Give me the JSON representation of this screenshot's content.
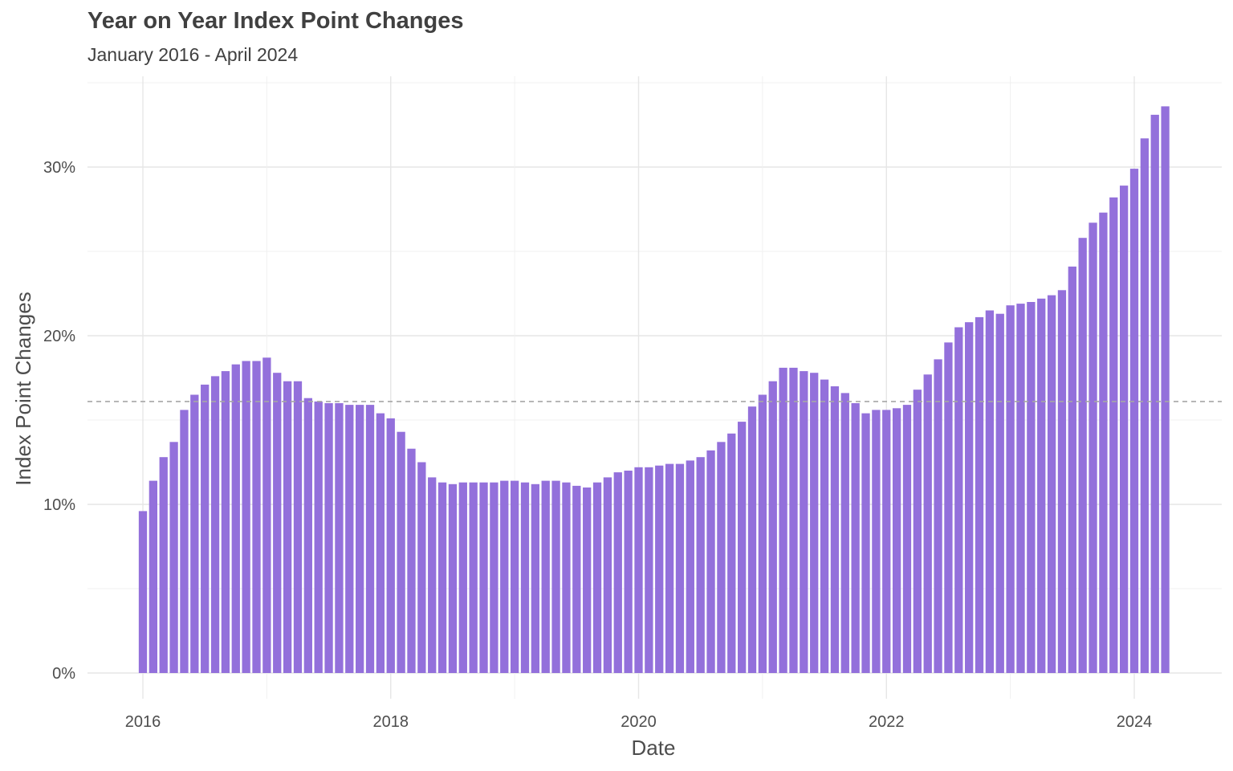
{
  "chart_data": {
    "type": "bar",
    "title": "Year on Year Index Point Changes",
    "subtitle": "January 2016 - April 2024",
    "xlabel": "Date",
    "ylabel": "Index Point Changes",
    "x_start": "2016-01",
    "x_end": "2024-04",
    "x_ticks": [
      "2016",
      "2018",
      "2020",
      "2022",
      "2024"
    ],
    "y_ticks": [
      "0%",
      "10%",
      "20%",
      "30%"
    ],
    "ylim": [
      0,
      35
    ],
    "y_unit": "%",
    "reference_line": 16.1,
    "grid": true,
    "bar_color": "#9370DB",
    "reference_line_color": "#a6a6a6",
    "series": [
      {
        "values": [
          9.6,
          11.4,
          12.8,
          13.7,
          15.6,
          16.5,
          17.1,
          17.6,
          17.9,
          18.3,
          18.5,
          18.5,
          18.7,
          17.8,
          17.3,
          17.3,
          16.3,
          16.1,
          16.0,
          16.0,
          15.9,
          15.9,
          15.9,
          15.4,
          15.1,
          14.3,
          13.3,
          12.5,
          11.6,
          11.3,
          11.2,
          11.3,
          11.3,
          11.3,
          11.3,
          11.4,
          11.4,
          11.3,
          11.2,
          11.4,
          11.4,
          11.3,
          11.1,
          11.0,
          11.3,
          11.6,
          11.9,
          12.0,
          12.2,
          12.2,
          12.3,
          12.4,
          12.4,
          12.6,
          12.8,
          13.2,
          13.7,
          14.2,
          14.9,
          15.8,
          16.5,
          17.3,
          18.1,
          18.1,
          17.9,
          17.8,
          17.4,
          17.0,
          16.6,
          16.0,
          15.4,
          15.6,
          15.6,
          15.7,
          15.9,
          16.8,
          17.7,
          18.6,
          19.6,
          20.5,
          20.8,
          21.1,
          21.5,
          21.3,
          21.8,
          21.9,
          22.0,
          22.2,
          22.4,
          22.7,
          24.1,
          25.8,
          26.7,
          27.3,
          28.2,
          28.9,
          29.9,
          31.7,
          33.1,
          33.6
        ]
      }
    ]
  }
}
